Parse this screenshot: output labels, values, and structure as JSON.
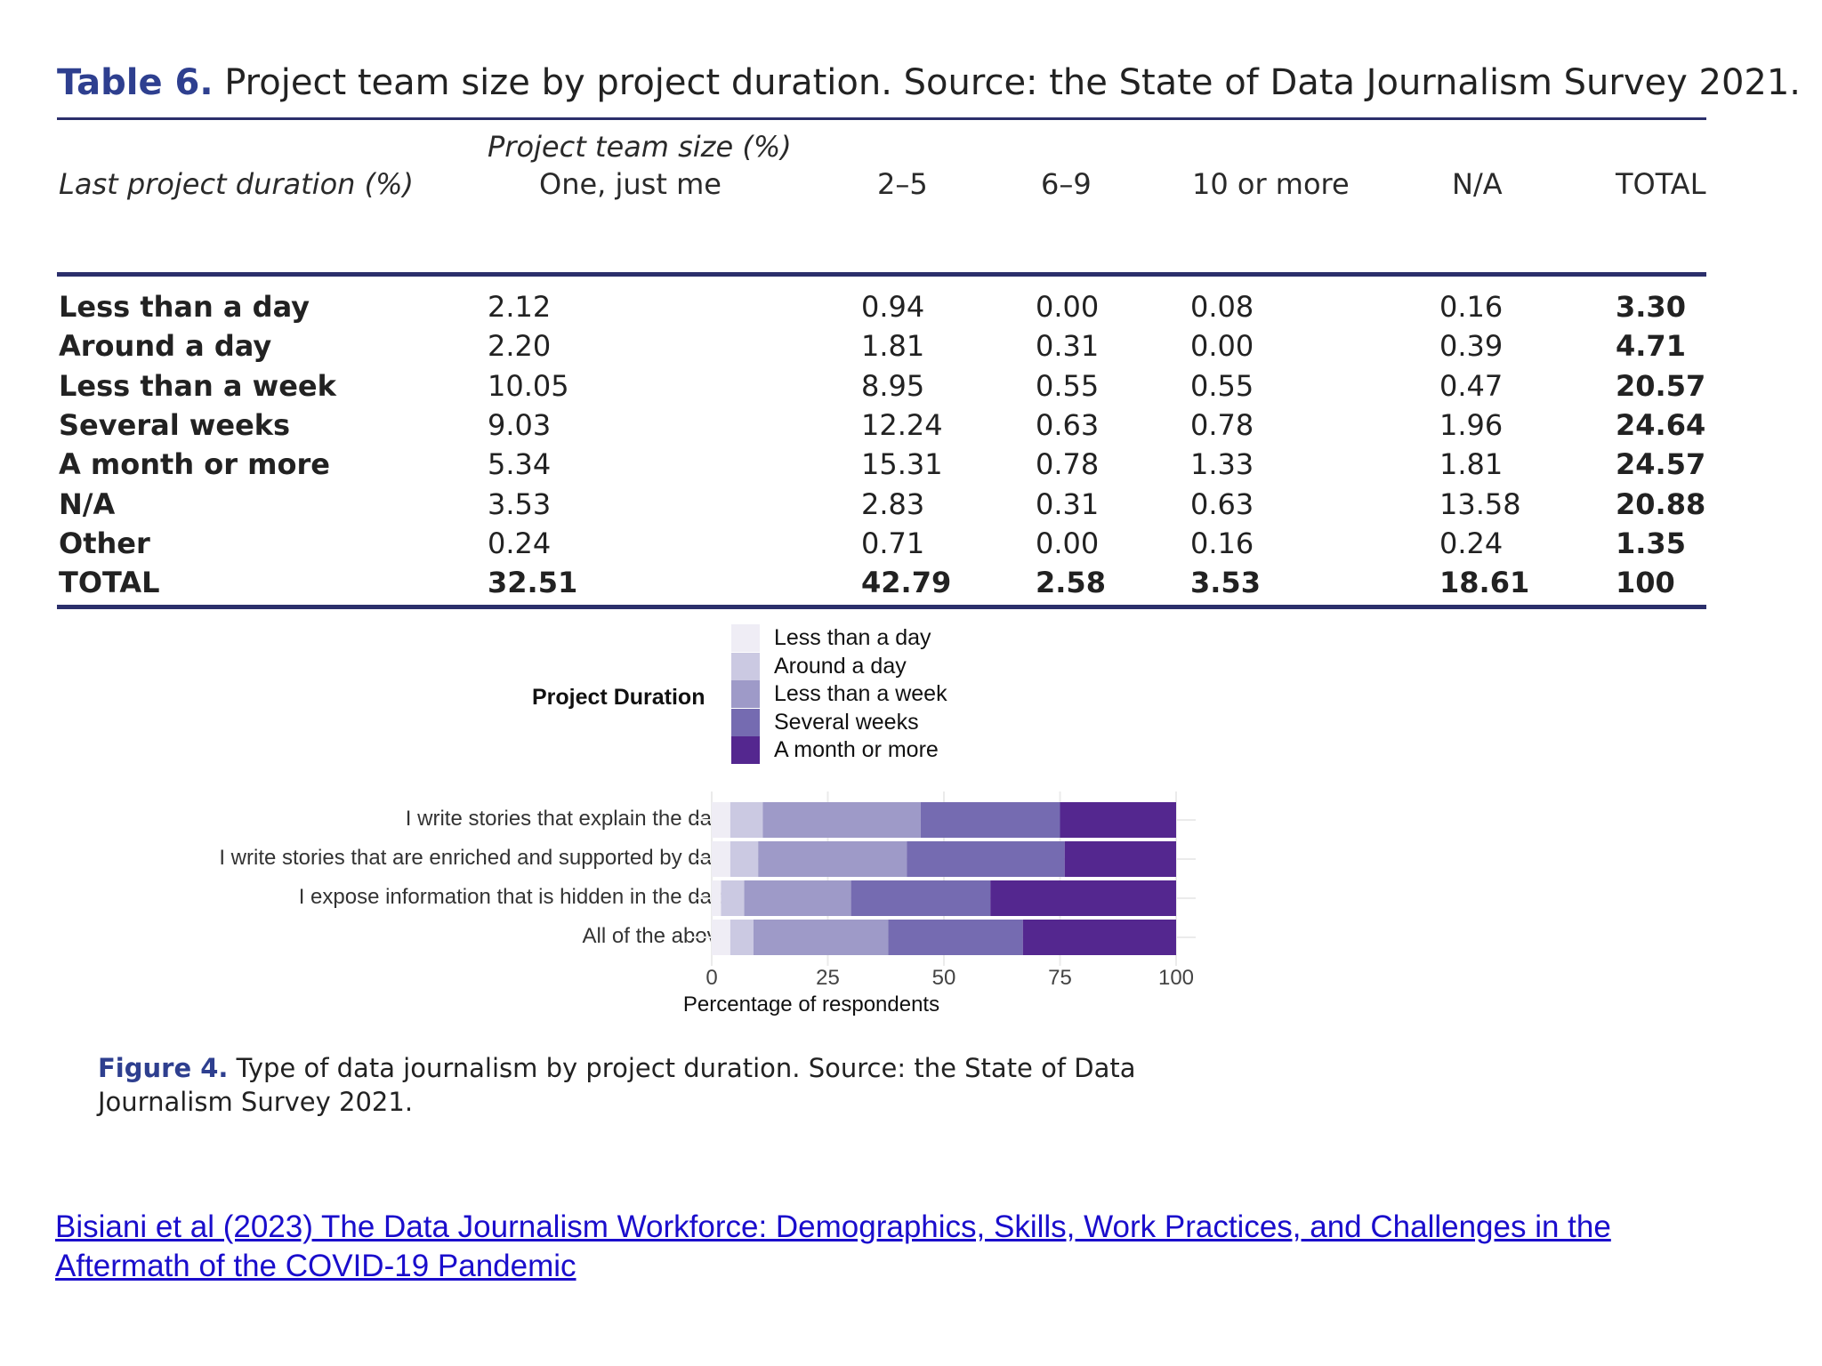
{
  "table": {
    "caption_label": "Table 6.",
    "caption_text": "Project team size by project duration. Source: the State of Data Journalism Survey 2021.",
    "row_header_title": "Last project duration (%)",
    "spanner": "Project team size (%)",
    "columns": [
      "One, just me",
      "2–5",
      "6–9",
      "10 or more",
      "N/A",
      "TOTAL"
    ],
    "rows": [
      {
        "label": "Less than a day",
        "values": [
          "2.12",
          "0.94",
          "0.00",
          "0.08",
          "0.16",
          "3.30"
        ]
      },
      {
        "label": "Around a day",
        "values": [
          "2.20",
          "1.81",
          "0.31",
          "0.00",
          "0.39",
          "4.71"
        ]
      },
      {
        "label": "Less than a week",
        "values": [
          "10.05",
          "8.95",
          "0.55",
          "0.55",
          "0.47",
          "20.57"
        ]
      },
      {
        "label": "Several weeks",
        "values": [
          "9.03",
          "12.24",
          "0.63",
          "0.78",
          "1.96",
          "24.64"
        ]
      },
      {
        "label": "A month or more",
        "values": [
          "5.34",
          "15.31",
          "0.78",
          "1.33",
          "1.81",
          "24.57"
        ]
      },
      {
        "label": "N/A",
        "values": [
          "3.53",
          "2.83",
          "0.31",
          "0.63",
          "13.58",
          "20.88"
        ]
      },
      {
        "label": "Other",
        "values": [
          "0.24",
          "0.71",
          "0.00",
          "0.16",
          "0.24",
          "1.35"
        ]
      },
      {
        "label": "TOTAL",
        "values": [
          "32.51",
          "42.79",
          "2.58",
          "3.53",
          "18.61",
          "100"
        ]
      }
    ]
  },
  "chart_data": {
    "type": "bar",
    "orientation": "horizontal",
    "stacked": true,
    "legend_title": "Project Duration",
    "legend_position": "top",
    "categories": [
      "I write stories that explain the data",
      "I write stories that are enriched and supported by data",
      "I expose information that is hidden in the data",
      "All of the above"
    ],
    "series": [
      {
        "name": "Less than a day",
        "color": "#efedf5",
        "values": [
          4,
          4,
          2,
          4
        ]
      },
      {
        "name": "Around a day",
        "color": "#cbc9e2",
        "values": [
          7,
          6,
          5,
          5
        ]
      },
      {
        "name": "Less than a week",
        "color": "#9e9ac8",
        "values": [
          34,
          32,
          23,
          29
        ]
      },
      {
        "name": "Several weeks",
        "color": "#756bb1",
        "values": [
          30,
          34,
          30,
          29
        ]
      },
      {
        "name": "A month or more",
        "color": "#54278f",
        "values": [
          25,
          24,
          40,
          33
        ]
      }
    ],
    "xlabel": "Percentage of respondents",
    "xlim": [
      0,
      100
    ],
    "xticks": [
      "0",
      "25",
      "50",
      "75",
      "100"
    ],
    "grid": true
  },
  "figure": {
    "caption_label": "Figure 4.",
    "caption_text": "Type of data journalism by project duration. Source: the State of Data Journalism Survey 2021."
  },
  "citation": {
    "text": "Bisiani et al (2023) The Data Journalism Workforce: Demographics, Skills, Work Practices, and Challenges in the Aftermath of the COVID-19 Pandemic"
  }
}
